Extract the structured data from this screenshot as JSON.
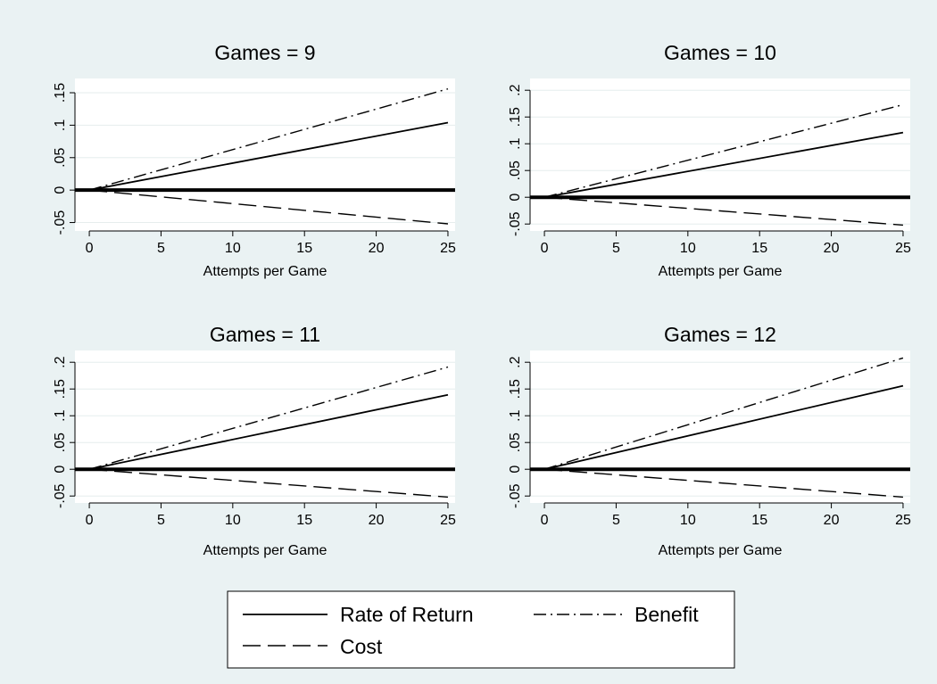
{
  "colors": {
    "background": "#eaf2f3",
    "plot_area": "#ffffff",
    "grid": "#e6eded",
    "line": "#000000"
  },
  "legend": {
    "placement": "bottom-center",
    "entries": [
      {
        "label": "Rate of Return",
        "style": "solid"
      },
      {
        "label": "Benefit",
        "style": "dashdot"
      },
      {
        "label": "Cost",
        "style": "longdash"
      }
    ]
  },
  "chart_data": [
    {
      "type": "line",
      "title": "Games = 9",
      "xlabel": "Attempts per Game",
      "ylabel": "",
      "xlim": [
        -1,
        25.5
      ],
      "ylim": [
        -0.063,
        0.172
      ],
      "xticks": [
        0,
        5,
        10,
        15,
        20,
        25
      ],
      "xtick_labels": [
        "0",
        "5",
        "10",
        "15",
        "20",
        "25"
      ],
      "yticks": [
        -0.05,
        0,
        0.05,
        0.1,
        0.15
      ],
      "ytick_labels": [
        "-.05",
        "0",
        ".05",
        ".1",
        ".15"
      ],
      "grid": true,
      "reference_line": {
        "y": 0,
        "style": "thick-solid"
      },
      "series": [
        {
          "name": "Rate of Return",
          "style": "solid",
          "x": [
            0,
            25
          ],
          "y": [
            0,
            0.104
          ]
        },
        {
          "name": "Benefit",
          "style": "dashdot",
          "x": [
            0,
            25
          ],
          "y": [
            0,
            0.156
          ]
        },
        {
          "name": "Cost",
          "style": "longdash",
          "x": [
            0,
            25
          ],
          "y": [
            0,
            -0.052
          ]
        }
      ]
    },
    {
      "type": "line",
      "title": "Games = 10",
      "xlabel": "Attempts per Game",
      "ylabel": "",
      "xlim": [
        -1,
        25.5
      ],
      "ylim": [
        -0.063,
        0.222
      ],
      "xticks": [
        0,
        5,
        10,
        15,
        20,
        25
      ],
      "xtick_labels": [
        "0",
        "5",
        "10",
        "15",
        "20",
        "25"
      ],
      "yticks": [
        -0.05,
        0,
        0.05,
        0.1,
        0.15,
        0.2
      ],
      "ytick_labels": [
        "-.05",
        "0",
        ".05",
        ".1",
        ".15",
        ".2"
      ],
      "grid": true,
      "reference_line": {
        "y": 0,
        "style": "thick-solid"
      },
      "series": [
        {
          "name": "Rate of Return",
          "style": "solid",
          "x": [
            0,
            25
          ],
          "y": [
            0,
            0.121
          ]
        },
        {
          "name": "Benefit",
          "style": "dashdot",
          "x": [
            0,
            25
          ],
          "y": [
            0,
            0.173
          ]
        },
        {
          "name": "Cost",
          "style": "longdash",
          "x": [
            0,
            25
          ],
          "y": [
            0,
            -0.052
          ]
        }
      ]
    },
    {
      "type": "line",
      "title": "Games = 11",
      "xlabel": "Attempts per Game",
      "ylabel": "",
      "xlim": [
        -1,
        25.5
      ],
      "ylim": [
        -0.063,
        0.222
      ],
      "xticks": [
        0,
        5,
        10,
        15,
        20,
        25
      ],
      "xtick_labels": [
        "0",
        "5",
        "10",
        "15",
        "20",
        "25"
      ],
      "yticks": [
        -0.05,
        0,
        0.05,
        0.1,
        0.15,
        0.2
      ],
      "ytick_labels": [
        "-.05",
        "0",
        ".05",
        ".1",
        ".15",
        ".2"
      ],
      "grid": true,
      "reference_line": {
        "y": 0,
        "style": "thick-solid"
      },
      "series": [
        {
          "name": "Rate of Return",
          "style": "solid",
          "x": [
            0,
            25
          ],
          "y": [
            0,
            0.139
          ]
        },
        {
          "name": "Benefit",
          "style": "dashdot",
          "x": [
            0,
            25
          ],
          "y": [
            0,
            0.191
          ]
        },
        {
          "name": "Cost",
          "style": "longdash",
          "x": [
            0,
            25
          ],
          "y": [
            0,
            -0.052
          ]
        }
      ]
    },
    {
      "type": "line",
      "title": "Games = 12",
      "xlabel": "Attempts per Game",
      "ylabel": "",
      "xlim": [
        -1,
        25.5
      ],
      "ylim": [
        -0.063,
        0.222
      ],
      "xticks": [
        0,
        5,
        10,
        15,
        20,
        25
      ],
      "xtick_labels": [
        "0",
        "5",
        "10",
        "15",
        "20",
        "25"
      ],
      "yticks": [
        -0.05,
        0,
        0.05,
        0.1,
        0.15,
        0.2
      ],
      "ytick_labels": [
        "-.05",
        "0",
        ".05",
        ".1",
        ".15",
        ".2"
      ],
      "grid": true,
      "reference_line": {
        "y": 0,
        "style": "thick-solid"
      },
      "series": [
        {
          "name": "Rate of Return",
          "style": "solid",
          "x": [
            0,
            25
          ],
          "y": [
            0,
            0.156
          ]
        },
        {
          "name": "Benefit",
          "style": "dashdot",
          "x": [
            0,
            25
          ],
          "y": [
            0,
            0.208
          ]
        },
        {
          "name": "Cost",
          "style": "longdash",
          "x": [
            0,
            25
          ],
          "y": [
            0,
            -0.052
          ]
        }
      ]
    }
  ]
}
